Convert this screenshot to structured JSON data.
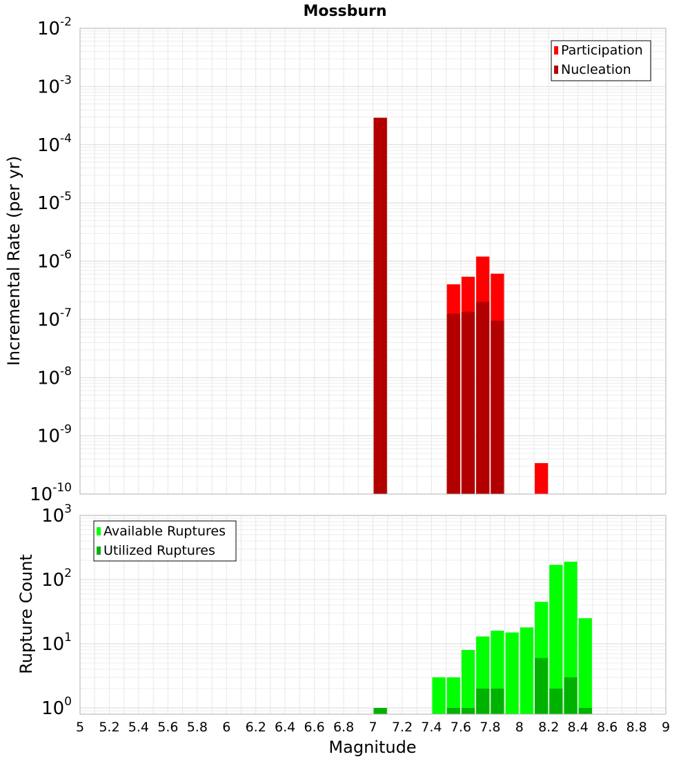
{
  "title": "Mossburn",
  "colors": {
    "participation": "#ff0000",
    "nucleation": "#b20000",
    "available": "#00ff00",
    "utilized": "#00b200",
    "grid": "#e6e6e6",
    "frame": "#b0b0b0"
  },
  "chart_data": [
    {
      "type": "bar",
      "xlabel": "Magnitude",
      "ylabel": "Incremental Rate (per yr)",
      "yscale": "log",
      "ylim": [
        1e-10,
        0.01
      ],
      "xlim": [
        5,
        9
      ],
      "ytick_exponents": [
        -2,
        -3,
        -4,
        -5,
        -6,
        -7,
        -8,
        -9,
        -10
      ],
      "legend": {
        "position": "top-right",
        "entries": [
          "Participation",
          "Nucleation"
        ]
      },
      "bin_width": 0.1,
      "series": [
        {
          "name": "Participation",
          "x": [
            7.05,
            7.55,
            7.65,
            7.75,
            7.85,
            8.15
          ],
          "values": [
            0.00029,
            4e-07,
            5.4e-07,
            1.2e-06,
            6.1e-07,
            3.4e-10
          ]
        },
        {
          "name": "Nucleation",
          "x": [
            7.05,
            7.55,
            7.65,
            7.75,
            7.85
          ],
          "values": [
            0.00029,
            1.25e-07,
            1.35e-07,
            2e-07,
            9.5e-08
          ]
        }
      ]
    },
    {
      "type": "bar",
      "xlabel": "Magnitude",
      "ylabel": "Rupture Count",
      "yscale": "log",
      "ylim": [
        0.8,
        1000
      ],
      "xlim": [
        5,
        9
      ],
      "ytick_exponents": [
        3,
        2,
        1,
        0
      ],
      "xticks": [
        "5",
        "5.2",
        "5.4",
        "5.6",
        "5.8",
        "6",
        "6.2",
        "6.4",
        "6.6",
        "6.8",
        "7",
        "7.2",
        "7.4",
        "7.6",
        "7.8",
        "8",
        "8.2",
        "8.4",
        "8.6",
        "8.8",
        "9"
      ],
      "legend": {
        "position": "top-left",
        "entries": [
          "Available Ruptures",
          "Utilized Ruptures"
        ]
      },
      "bin_width": 0.1,
      "series": [
        {
          "name": "Available Ruptures",
          "x": [
            7.05,
            7.45,
            7.55,
            7.65,
            7.75,
            7.85,
            7.95,
            8.05,
            8.15,
            8.25,
            8.35,
            8.45
          ],
          "values": [
            1,
            3,
            3,
            8,
            13,
            16,
            15,
            18,
            45,
            170,
            190,
            25
          ]
        },
        {
          "name": "Utilized Ruptures",
          "x": [
            7.05,
            7.55,
            7.65,
            7.75,
            7.85,
            8.15,
            8.25,
            8.35,
            8.45
          ],
          "values": [
            1,
            1,
            1,
            2,
            2,
            6,
            2,
            3,
            1
          ]
        }
      ]
    }
  ]
}
